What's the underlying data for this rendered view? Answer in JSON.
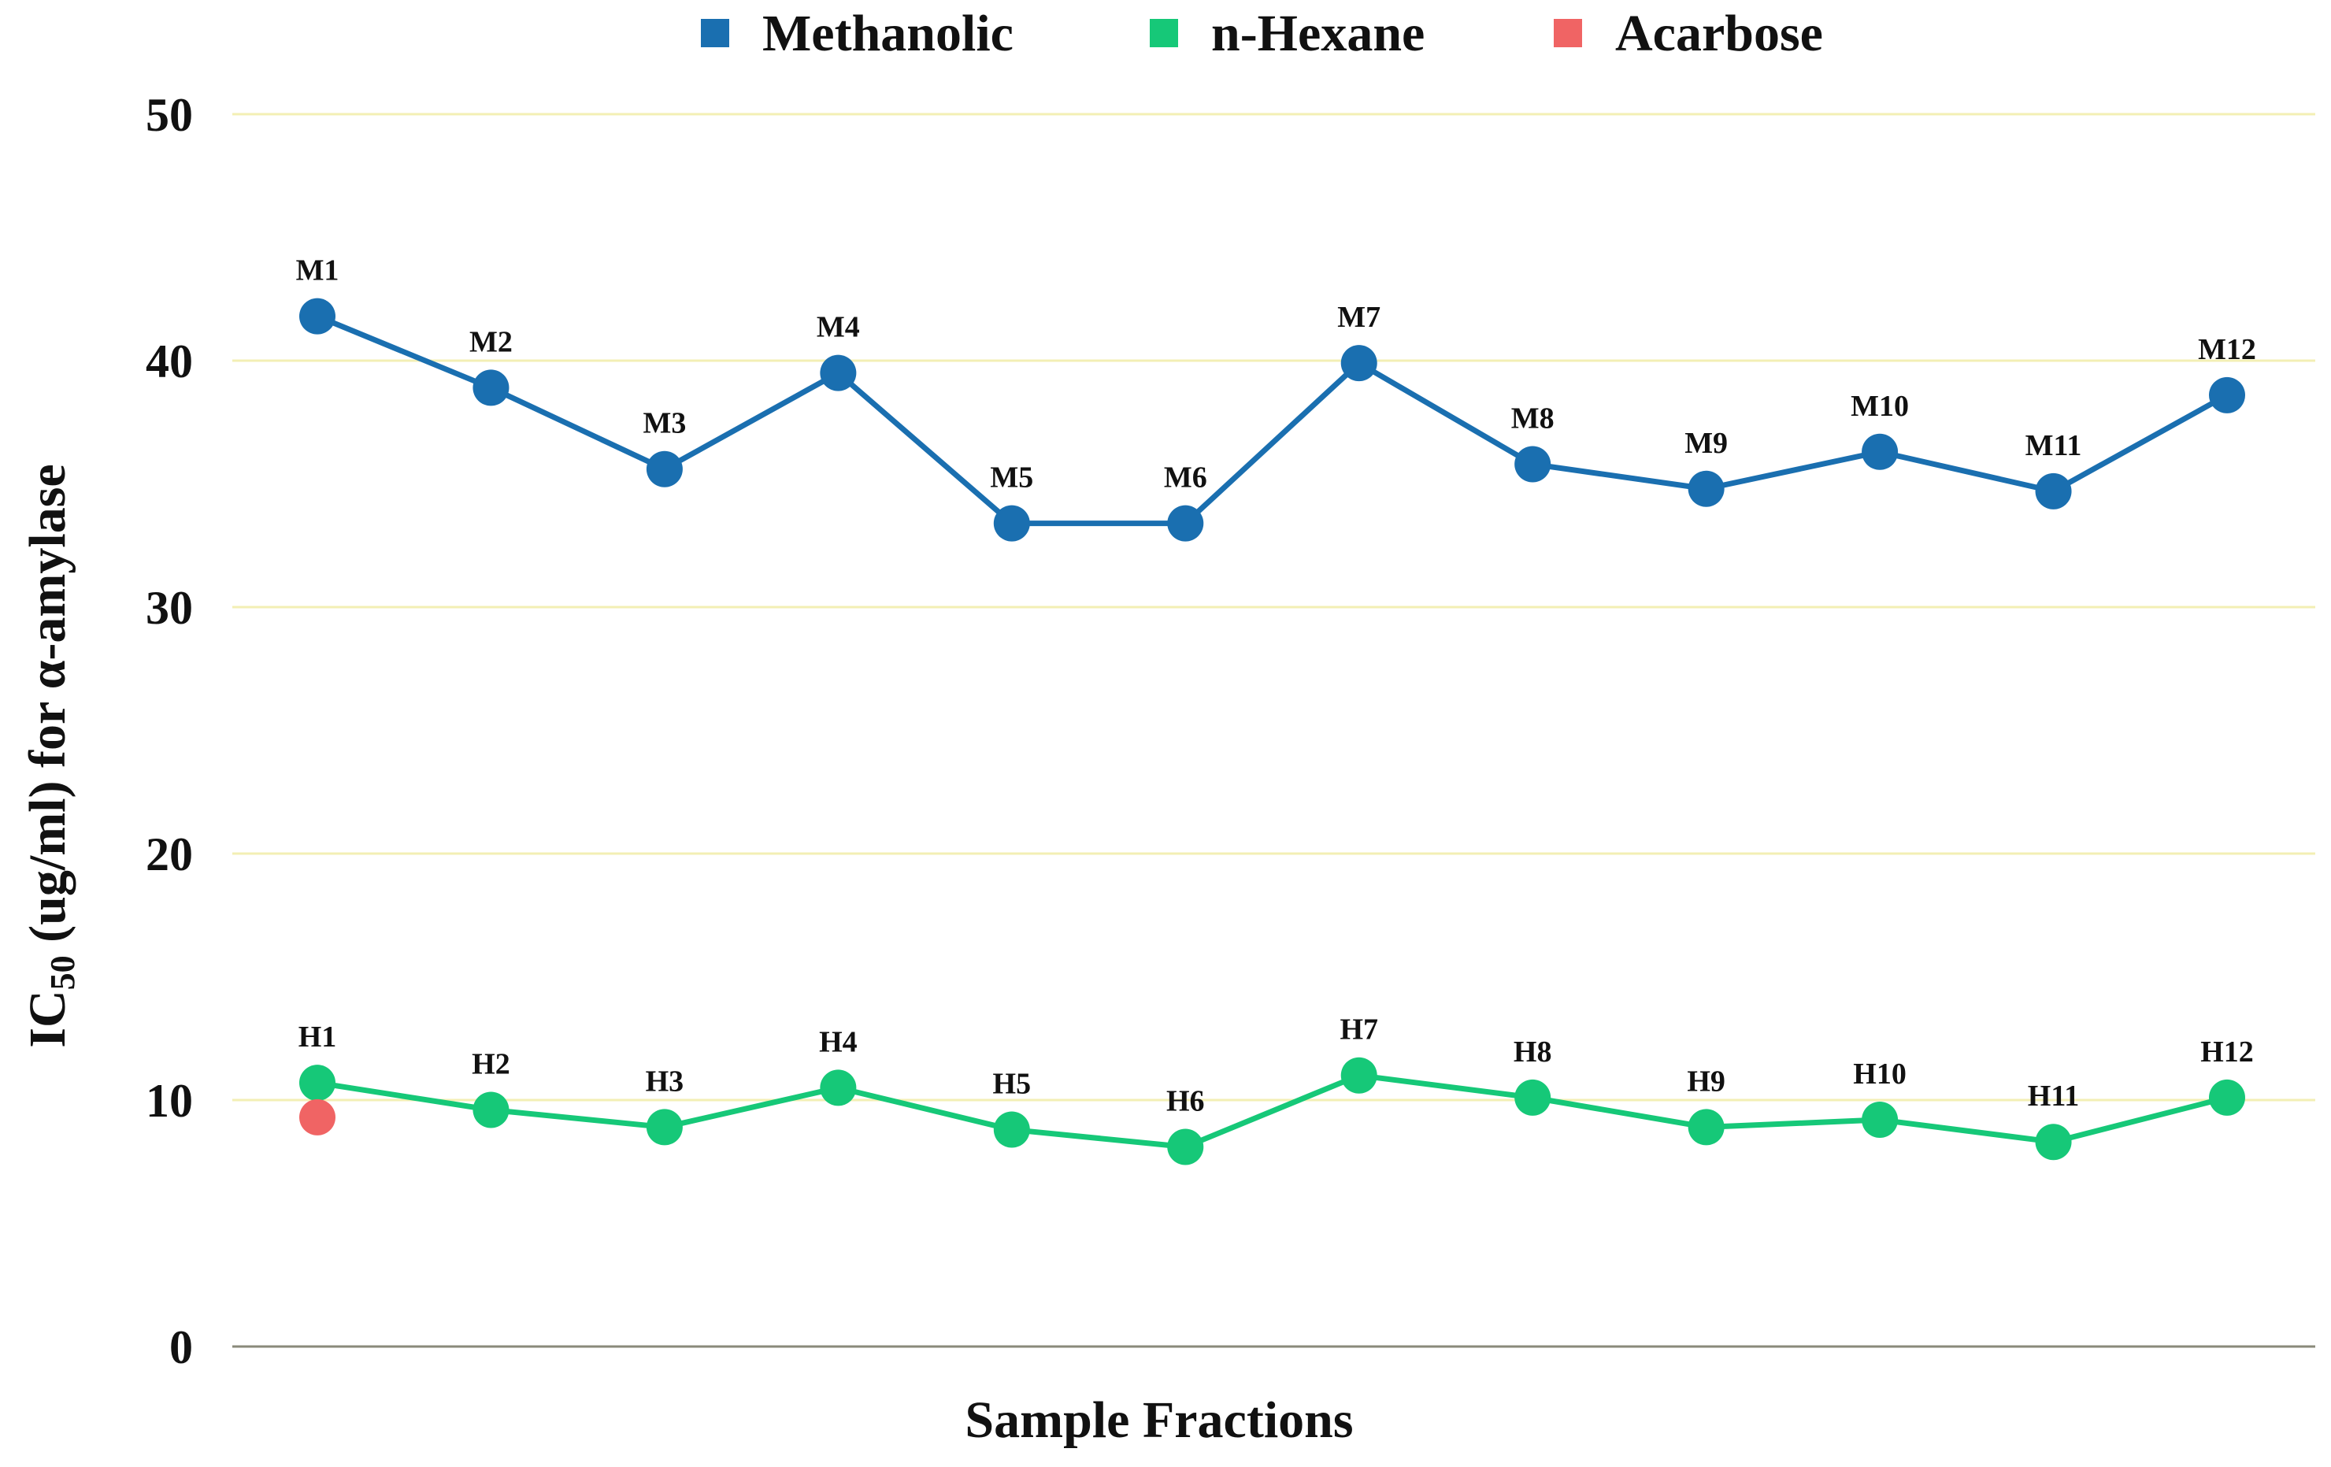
{
  "chart_data": {
    "type": "line",
    "xlabel": "Sample Fractions",
    "ylabel": {
      "prefix": "IC",
      "subscript": "50",
      "suffix": " (ug/ml) for  α-amylase"
    },
    "ylim": [
      0,
      50
    ],
    "yticks": [
      0,
      10,
      20,
      30,
      40,
      50
    ],
    "grid": true,
    "grid_color": "#f3efb4",
    "axis_color": "#8a8a7a",
    "legend_position": "top",
    "categories": [
      "1",
      "2",
      "3",
      "4",
      "5",
      "6",
      "7",
      "8",
      "9",
      "10",
      "11",
      "12"
    ],
    "series": [
      {
        "name": "Methanolic",
        "color": "#1a6fb0",
        "values": [
          41.8,
          38.9,
          35.6,
          39.5,
          33.4,
          33.4,
          39.9,
          35.8,
          34.8,
          36.3,
          34.7,
          38.6
        ],
        "labels": [
          "M1",
          "M2",
          "M3",
          "M4",
          "M5",
          "M6",
          "M7",
          "M8",
          "M9",
          "M10",
          "M11",
          "M12"
        ]
      },
      {
        "name": "n-Hexane",
        "color": "#16c878",
        "values": [
          10.7,
          9.6,
          8.9,
          10.5,
          8.8,
          8.1,
          11.0,
          10.1,
          8.9,
          9.2,
          8.3,
          10.1
        ],
        "labels": [
          "H1",
          "H2",
          "H3",
          "H4",
          "H5",
          "H6",
          "H7",
          "H8",
          "H9",
          "H10",
          "H11",
          "H12"
        ]
      },
      {
        "name": "Acarbose",
        "color": "#f06464",
        "values": [
          9.3,
          null,
          null,
          null,
          null,
          null,
          null,
          null,
          null,
          null,
          null,
          null
        ],
        "labels": []
      }
    ]
  }
}
